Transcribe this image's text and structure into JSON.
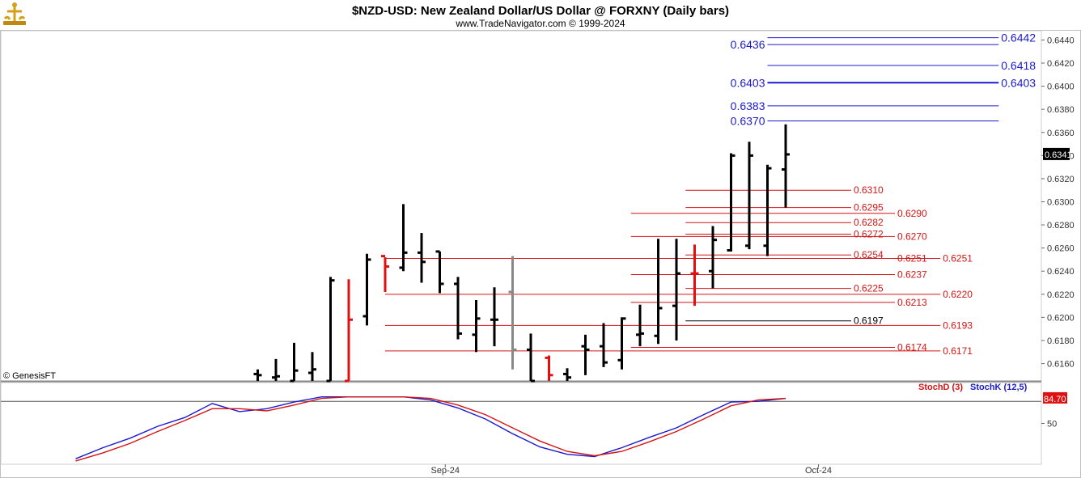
{
  "header": {
    "title": "$NZD-USD:  New Zealand Dollar/US Dollar @ FORXNY  (Daily bars)",
    "subtitle": "www.TradeNavigator.com © 1999-2024",
    "logo_icon": "trade-navigator-logo-icon"
  },
  "credit": "© GenesisFT",
  "last_price_badge": "0.6341",
  "stoch_value_badge": "84.70",
  "legend": {
    "stoch_d": "StochD (3)",
    "stoch_k": "StochK (12,5)"
  },
  "colors": {
    "blue": "#1a1acc",
    "red": "#d41414",
    "bar": "#000000",
    "bar_up_red": "#e01010",
    "bar_gray": "#888888",
    "grid": "#e6e6e6",
    "badge_black": "#000000",
    "badge_red": "#e01010"
  },
  "chart_data": [
    {
      "type": "ohlc",
      "title": "$NZD-USD:  New Zealand Dollar/US Dollar @ FORXNY  (Daily bars)",
      "ylim": [
        0.6145,
        0.6448
      ],
      "y_ticks": [
        "0.6440",
        "0.6420",
        "0.6400",
        "0.6380",
        "0.6360",
        "0.6340",
        "0.6320",
        "0.6300",
        "0.6280",
        "0.6260",
        "0.6240",
        "0.6220",
        "0.6200",
        "0.6180",
        "0.6160"
      ],
      "x_tick_labels": [
        "Sep-24",
        "Oct-24"
      ],
      "x_tick_bar_index": [
        10.3,
        30.8
      ],
      "bars": [
        {
          "o": 0.6151,
          "h": 0.6155,
          "l": 0.6145,
          "c": 0.615,
          "color": "black"
        },
        {
          "o": 0.6148,
          "h": 0.6164,
          "l": 0.6145,
          "c": 0.6149,
          "color": "black"
        },
        {
          "o": 0.6145,
          "h": 0.6178,
          "l": 0.6145,
          "c": 0.6154,
          "color": "black"
        },
        {
          "o": 0.6152,
          "h": 0.617,
          "l": 0.6145,
          "c": 0.6155,
          "color": "black"
        },
        {
          "o": 0.6145,
          "h": 0.6235,
          "l": 0.6145,
          "c": 0.6232,
          "color": "black"
        },
        {
          "o": 0.6145,
          "h": 0.6233,
          "l": 0.6145,
          "c": 0.6198,
          "color": "red"
        },
        {
          "o": 0.6201,
          "h": 0.6255,
          "l": 0.6193,
          "c": 0.625,
          "color": "black"
        },
        {
          "o": 0.6253,
          "h": 0.6252,
          "l": 0.6222,
          "c": 0.6244,
          "color": "red"
        },
        {
          "o": 0.6243,
          "h": 0.6298,
          "l": 0.624,
          "c": 0.6256,
          "color": "black"
        },
        {
          "o": 0.6256,
          "h": 0.6273,
          "l": 0.623,
          "c": 0.6248,
          "color": "black"
        },
        {
          "o": 0.6257,
          "h": 0.6257,
          "l": 0.6221,
          "c": 0.6229,
          "color": "black"
        },
        {
          "o": 0.6229,
          "h": 0.6235,
          "l": 0.6181,
          "c": 0.6186,
          "color": "black"
        },
        {
          "o": 0.6185,
          "h": 0.6215,
          "l": 0.617,
          "c": 0.6199,
          "color": "black"
        },
        {
          "o": 0.6198,
          "h": 0.6226,
          "l": 0.6175,
          "c": 0.6198,
          "color": "black"
        },
        {
          "o": 0.6222,
          "h": 0.6253,
          "l": 0.6155,
          "c": 0.6172,
          "color": "gray"
        },
        {
          "o": 0.6172,
          "h": 0.6186,
          "l": 0.6145,
          "c": 0.6145,
          "color": "black"
        },
        {
          "o": 0.6165,
          "h": 0.6167,
          "l": 0.6145,
          "c": 0.615,
          "color": "red"
        },
        {
          "o": 0.6151,
          "h": 0.6156,
          "l": 0.6145,
          "c": 0.6148,
          "color": "black"
        },
        {
          "o": 0.6175,
          "h": 0.6185,
          "l": 0.615,
          "c": 0.6172,
          "color": "black"
        },
        {
          "o": 0.6175,
          "h": 0.6195,
          "l": 0.6157,
          "c": 0.6161,
          "color": "black"
        },
        {
          "o": 0.6163,
          "h": 0.62,
          "l": 0.6155,
          "c": 0.6199,
          "color": "black"
        },
        {
          "o": 0.6185,
          "h": 0.6211,
          "l": 0.6175,
          "c": 0.6186,
          "color": "black"
        },
        {
          "o": 0.6184,
          "h": 0.6268,
          "l": 0.6177,
          "c": 0.6208,
          "color": "black"
        },
        {
          "o": 0.621,
          "h": 0.6268,
          "l": 0.618,
          "c": 0.6238,
          "color": "black"
        },
        {
          "o": 0.6238,
          "h": 0.6263,
          "l": 0.621,
          "c": 0.6238,
          "color": "red"
        },
        {
          "o": 0.624,
          "h": 0.6279,
          "l": 0.6225,
          "c": 0.6267,
          "color": "black"
        },
        {
          "o": 0.6258,
          "h": 0.6342,
          "l": 0.6257,
          "c": 0.634,
          "color": "black"
        },
        {
          "o": 0.6262,
          "h": 0.6352,
          "l": 0.6259,
          "c": 0.634,
          "color": "black"
        },
        {
          "o": 0.6262,
          "h": 0.6332,
          "l": 0.6253,
          "c": 0.6329,
          "color": "black"
        },
        {
          "o": 0.6328,
          "h": 0.6367,
          "l": 0.6295,
          "c": 0.6341,
          "color": "black"
        }
      ],
      "levels": [
        {
          "value": 0.6442,
          "label": "0.6442",
          "color": "blue",
          "x0_bar": 28.0,
          "x1_bar": 40.7,
          "label_side": "right",
          "label_bar": 40.7
        },
        {
          "value": 0.6436,
          "label": "0.6436",
          "color": "blue",
          "x0_bar": 28.0,
          "x1_bar": 40.7,
          "label_side": "left",
          "label_bar": 28.0
        },
        {
          "value": 0.6418,
          "label": "0.6418",
          "color": "blue",
          "x0_bar": 28.0,
          "x1_bar": 40.7,
          "label_side": "right",
          "label_bar": 40.7
        },
        {
          "value": 0.6403,
          "label": "0.6403",
          "color": "blue",
          "x0_bar": 28.0,
          "x1_bar": 40.7,
          "label_side": "both",
          "label_bar": 28.0
        },
        {
          "value": 0.6383,
          "label": "0.6383",
          "color": "blue",
          "x0_bar": 28.0,
          "x1_bar": 40.7,
          "label_side": "left",
          "label_bar": 28.0
        },
        {
          "value": 0.637,
          "label": "0.6370",
          "color": "blue",
          "x0_bar": 28.0,
          "x1_bar": 40.7,
          "label_side": "left",
          "label_bar": 28.0
        },
        {
          "value": 0.631,
          "label": "0.6310",
          "color": "red",
          "x0_bar": 23.5,
          "x1_bar": 32.6,
          "label_side": "right",
          "label_bar": 32.6
        },
        {
          "value": 0.6295,
          "label": "0.6295",
          "color": "red",
          "x0_bar": 23.5,
          "x1_bar": 32.6,
          "label_side": "right",
          "label_bar": 32.6
        },
        {
          "value": 0.629,
          "label": "0.6290",
          "color": "red",
          "x0_bar": 20.5,
          "x1_bar": 35.0,
          "label_side": "right",
          "label_bar": 35.0
        },
        {
          "value": 0.6282,
          "label": "0.6282",
          "color": "red",
          "x0_bar": 23.5,
          "x1_bar": 32.6,
          "label_side": "right",
          "label_bar": 32.6
        },
        {
          "value": 0.6272,
          "label": "0.6272",
          "color": "red",
          "x0_bar": 23.5,
          "x1_bar": 32.6,
          "label_side": "right",
          "label_bar": 32.6
        },
        {
          "value": 0.627,
          "label": "0.6270",
          "color": "red",
          "x0_bar": 20.5,
          "x1_bar": 35.0,
          "label_side": "right",
          "label_bar": 35.0
        },
        {
          "value": 0.6254,
          "label": "0.6254",
          "color": "red",
          "x0_bar": 23.5,
          "x1_bar": 32.6,
          "label_side": "right",
          "label_bar": 32.6
        },
        {
          "value": 0.6251,
          "label": "0.6251",
          "color": "red",
          "x0_bar": 20.5,
          "x1_bar": 35.0,
          "label_side": "right",
          "label_bar": 35.0
        },
        {
          "value": 0.6251,
          "label": "0.6251",
          "color": "red",
          "x0_bar": 7.0,
          "x1_bar": 37.5,
          "label_side": "right",
          "label_bar": 37.5
        },
        {
          "value": 0.6237,
          "label": "0.6237",
          "color": "red",
          "x0_bar": 20.5,
          "x1_bar": 35.0,
          "label_side": "right",
          "label_bar": 35.0
        },
        {
          "value": 0.6225,
          "label": "0.6225",
          "color": "red",
          "x0_bar": 23.5,
          "x1_bar": 32.6,
          "label_side": "right",
          "label_bar": 32.6
        },
        {
          "value": 0.622,
          "label": "0.6220",
          "color": "red",
          "x0_bar": 7.0,
          "x1_bar": 37.5,
          "label_side": "right",
          "label_bar": 37.5
        },
        {
          "value": 0.6213,
          "label": "0.6213",
          "color": "red",
          "x0_bar": 20.5,
          "x1_bar": 35.0,
          "label_side": "right",
          "label_bar": 35.0
        },
        {
          "value": 0.6197,
          "label": "0.6197",
          "color": "black",
          "x0_bar": 23.5,
          "x1_bar": 32.6,
          "label_side": "right",
          "label_bar": 32.6
        },
        {
          "value": 0.6193,
          "label": "0.6193",
          "color": "red",
          "x0_bar": 7.0,
          "x1_bar": 37.5,
          "label_side": "right",
          "label_bar": 37.5
        },
        {
          "value": 0.6174,
          "label": "0.6174",
          "color": "red",
          "x0_bar": 20.5,
          "x1_bar": 35.0,
          "label_side": "right",
          "label_bar": 35.0
        },
        {
          "value": 0.6171,
          "label": "0.6171",
          "color": "red",
          "x0_bar": 7.0,
          "x1_bar": 37.5,
          "label_side": "right",
          "label_bar": 37.5
        }
      ]
    },
    {
      "type": "line",
      "ylim": [
        0,
        100
      ],
      "y_ticks": [
        "50"
      ],
      "reference_line": 80,
      "series": [
        {
          "name": "StochK (12,5)",
          "color": "blue",
          "x": [
            -10.0,
            -8.5,
            -7.0,
            -5.5,
            -4.0,
            -2.5,
            -1.0,
            0.5,
            2.0,
            3.5,
            5.0,
            6.5,
            8.0,
            9.5,
            11.0,
            12.5,
            14.0,
            15.5,
            17.0,
            18.5,
            20.0,
            21.5,
            23.0,
            24.5,
            26.0,
            27.5,
            29.0
          ],
          "values": [
            2,
            17,
            30,
            46,
            58,
            77,
            66,
            70,
            79,
            86,
            86,
            86,
            86,
            82,
            71,
            56,
            36,
            18,
            8,
            5,
            17,
            31,
            44,
            62,
            79,
            80,
            84
          ]
        },
        {
          "name": "StochD (3)",
          "color": "red",
          "x": [
            -10.0,
            -8.5,
            -7.0,
            -5.5,
            -4.0,
            -2.5,
            -1.0,
            0.5,
            2.0,
            3.5,
            5.0,
            6.5,
            8.0,
            9.5,
            11.0,
            12.5,
            14.0,
            15.5,
            17.0,
            18.5,
            20.0,
            21.5,
            23.0,
            24.5,
            26.0,
            27.5,
            29.0
          ],
          "values": [
            -1,
            10,
            23,
            39,
            54,
            70,
            70,
            67,
            75,
            84,
            86,
            86,
            86,
            84,
            75,
            62,
            44,
            26,
            12,
            6,
            12,
            25,
            39,
            56,
            74,
            82,
            84
          ]
        }
      ]
    }
  ]
}
